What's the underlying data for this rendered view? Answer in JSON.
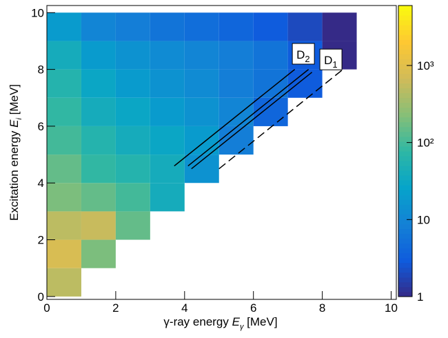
{
  "chart_data": {
    "type": "heatmap",
    "xlabel": {
      "text": "γ-ray energy ",
      "var": "E",
      "sub": "γ",
      "unit": " [MeV]"
    },
    "ylabel": {
      "text": "Excitation energy ",
      "var": "E",
      "sub": "i",
      "unit": " [MeV]"
    },
    "xbins": [
      0,
      1,
      2,
      3,
      4,
      5,
      6,
      7,
      8,
      9,
      10
    ],
    "ybins": [
      0,
      1,
      2,
      3,
      4,
      5,
      6,
      7,
      8,
      9,
      10
    ],
    "z": [
      [
        500,
        null,
        null,
        null,
        null,
        null,
        null,
        null,
        null,
        null
      ],
      [
        800,
        200,
        null,
        null,
        null,
        null,
        null,
        null,
        null,
        null
      ],
      [
        500,
        600,
        150,
        null,
        null,
        null,
        null,
        null,
        null,
        null
      ],
      [
        200,
        150,
        100,
        40,
        null,
        null,
        null,
        null,
        null,
        null
      ],
      [
        150,
        80,
        60,
        40,
        15,
        null,
        null,
        null,
        null,
        null
      ],
      [
        100,
        60,
        40,
        30,
        20,
        8,
        null,
        null,
        null,
        null
      ],
      [
        80,
        40,
        30,
        20,
        15,
        10,
        4,
        null,
        null,
        null
      ],
      [
        60,
        30,
        20,
        15,
        12,
        8,
        6,
        3,
        null,
        null
      ],
      [
        40,
        20,
        15,
        12,
        10,
        8,
        6,
        3,
        1,
        null
      ],
      [
        20,
        10,
        8,
        6,
        5,
        4,
        3,
        2,
        1,
        null
      ]
    ],
    "xlim": [
      0,
      10.15
    ],
    "ylim": [
      -0.1,
      10.25
    ],
    "xticks": [
      0,
      2,
      4,
      6,
      8,
      10
    ],
    "yticks": [
      0,
      2,
      4,
      6,
      8,
      10
    ],
    "zlim": [
      1,
      6000
    ],
    "zlog": true,
    "zticks": [
      1,
      10,
      {
        "value": 100,
        "label": "10²"
      },
      {
        "value": 1000,
        "label": "10³"
      }
    ],
    "colormap": [
      "#352a87",
      "#0f5cdd",
      "#1481d6",
      "#06a4ca",
      "#2eb7a4",
      "#87bf77",
      "#d1bb59",
      "#fec832",
      "#f9fb0e"
    ],
    "annotations": [
      {
        "label": "D",
        "sub": "2",
        "at": [
          7.45,
          8.55
        ],
        "lines": [
          {
            "points": [
              [
                3.7,
                4.6
              ],
              [
                7.2,
                8.0
              ]
            ],
            "dash": false
          }
        ]
      },
      {
        "label": "D",
        "sub": "1",
        "at": [
          8.25,
          8.35
        ],
        "lines": [
          {
            "points": [
              [
                4.1,
                4.6
              ],
              [
                7.6,
                8.0
              ]
            ],
            "dash": false
          },
          {
            "points": [
              [
                4.2,
                4.5
              ],
              [
                7.7,
                7.9
              ]
            ],
            "dash": false
          },
          {
            "points": [
              [
                5.0,
                4.5
              ],
              [
                8.6,
                8.0
              ]
            ],
            "dash": true
          }
        ]
      }
    ]
  }
}
